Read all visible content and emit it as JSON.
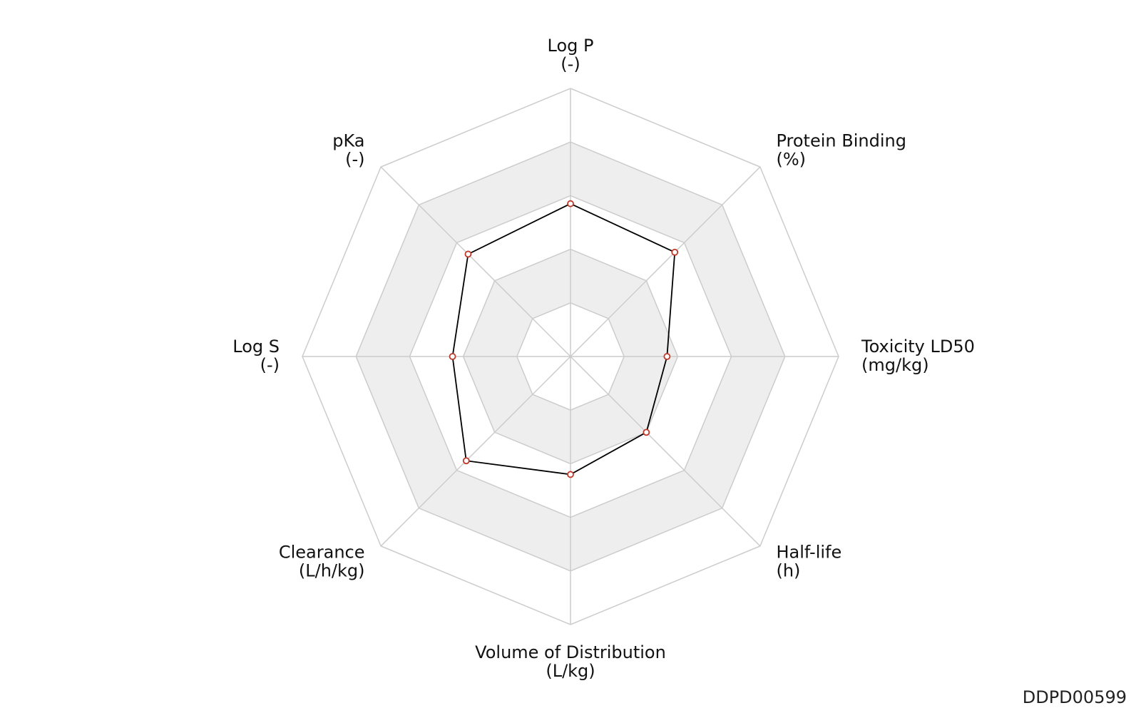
{
  "chart_data": {
    "type": "radar",
    "axes": [
      {
        "name": "Log P",
        "unit": "(-)"
      },
      {
        "name": "Protein Binding",
        "unit": "(%)"
      },
      {
        "name": "Toxicity LD50",
        "unit": "(mg/kg)"
      },
      {
        "name": "Half-life",
        "unit": "(h)"
      },
      {
        "name": "Volume of Distribution",
        "unit": "(L/kg)"
      },
      {
        "name": "Clearance",
        "unit": "(L/h/kg)"
      },
      {
        "name": "Log S",
        "unit": "(-)"
      },
      {
        "name": "pKa",
        "unit": "(-)"
      }
    ],
    "series": [
      {
        "values": [
          0.57,
          0.55,
          0.36,
          0.4,
          0.44,
          0.55,
          0.44,
          0.54
        ]
      }
    ],
    "rlim": [
      0,
      1
    ],
    "rings": [
      0.2,
      0.4,
      0.6,
      0.8,
      1.0
    ],
    "grid": true,
    "legend": "none",
    "colors": {
      "line": "#000000",
      "marker_edge": "#c0392b",
      "marker_fill": "#ffffff",
      "grid": "#cccccc",
      "band": "#eeeeee"
    }
  },
  "watermark": "DDPD00599"
}
